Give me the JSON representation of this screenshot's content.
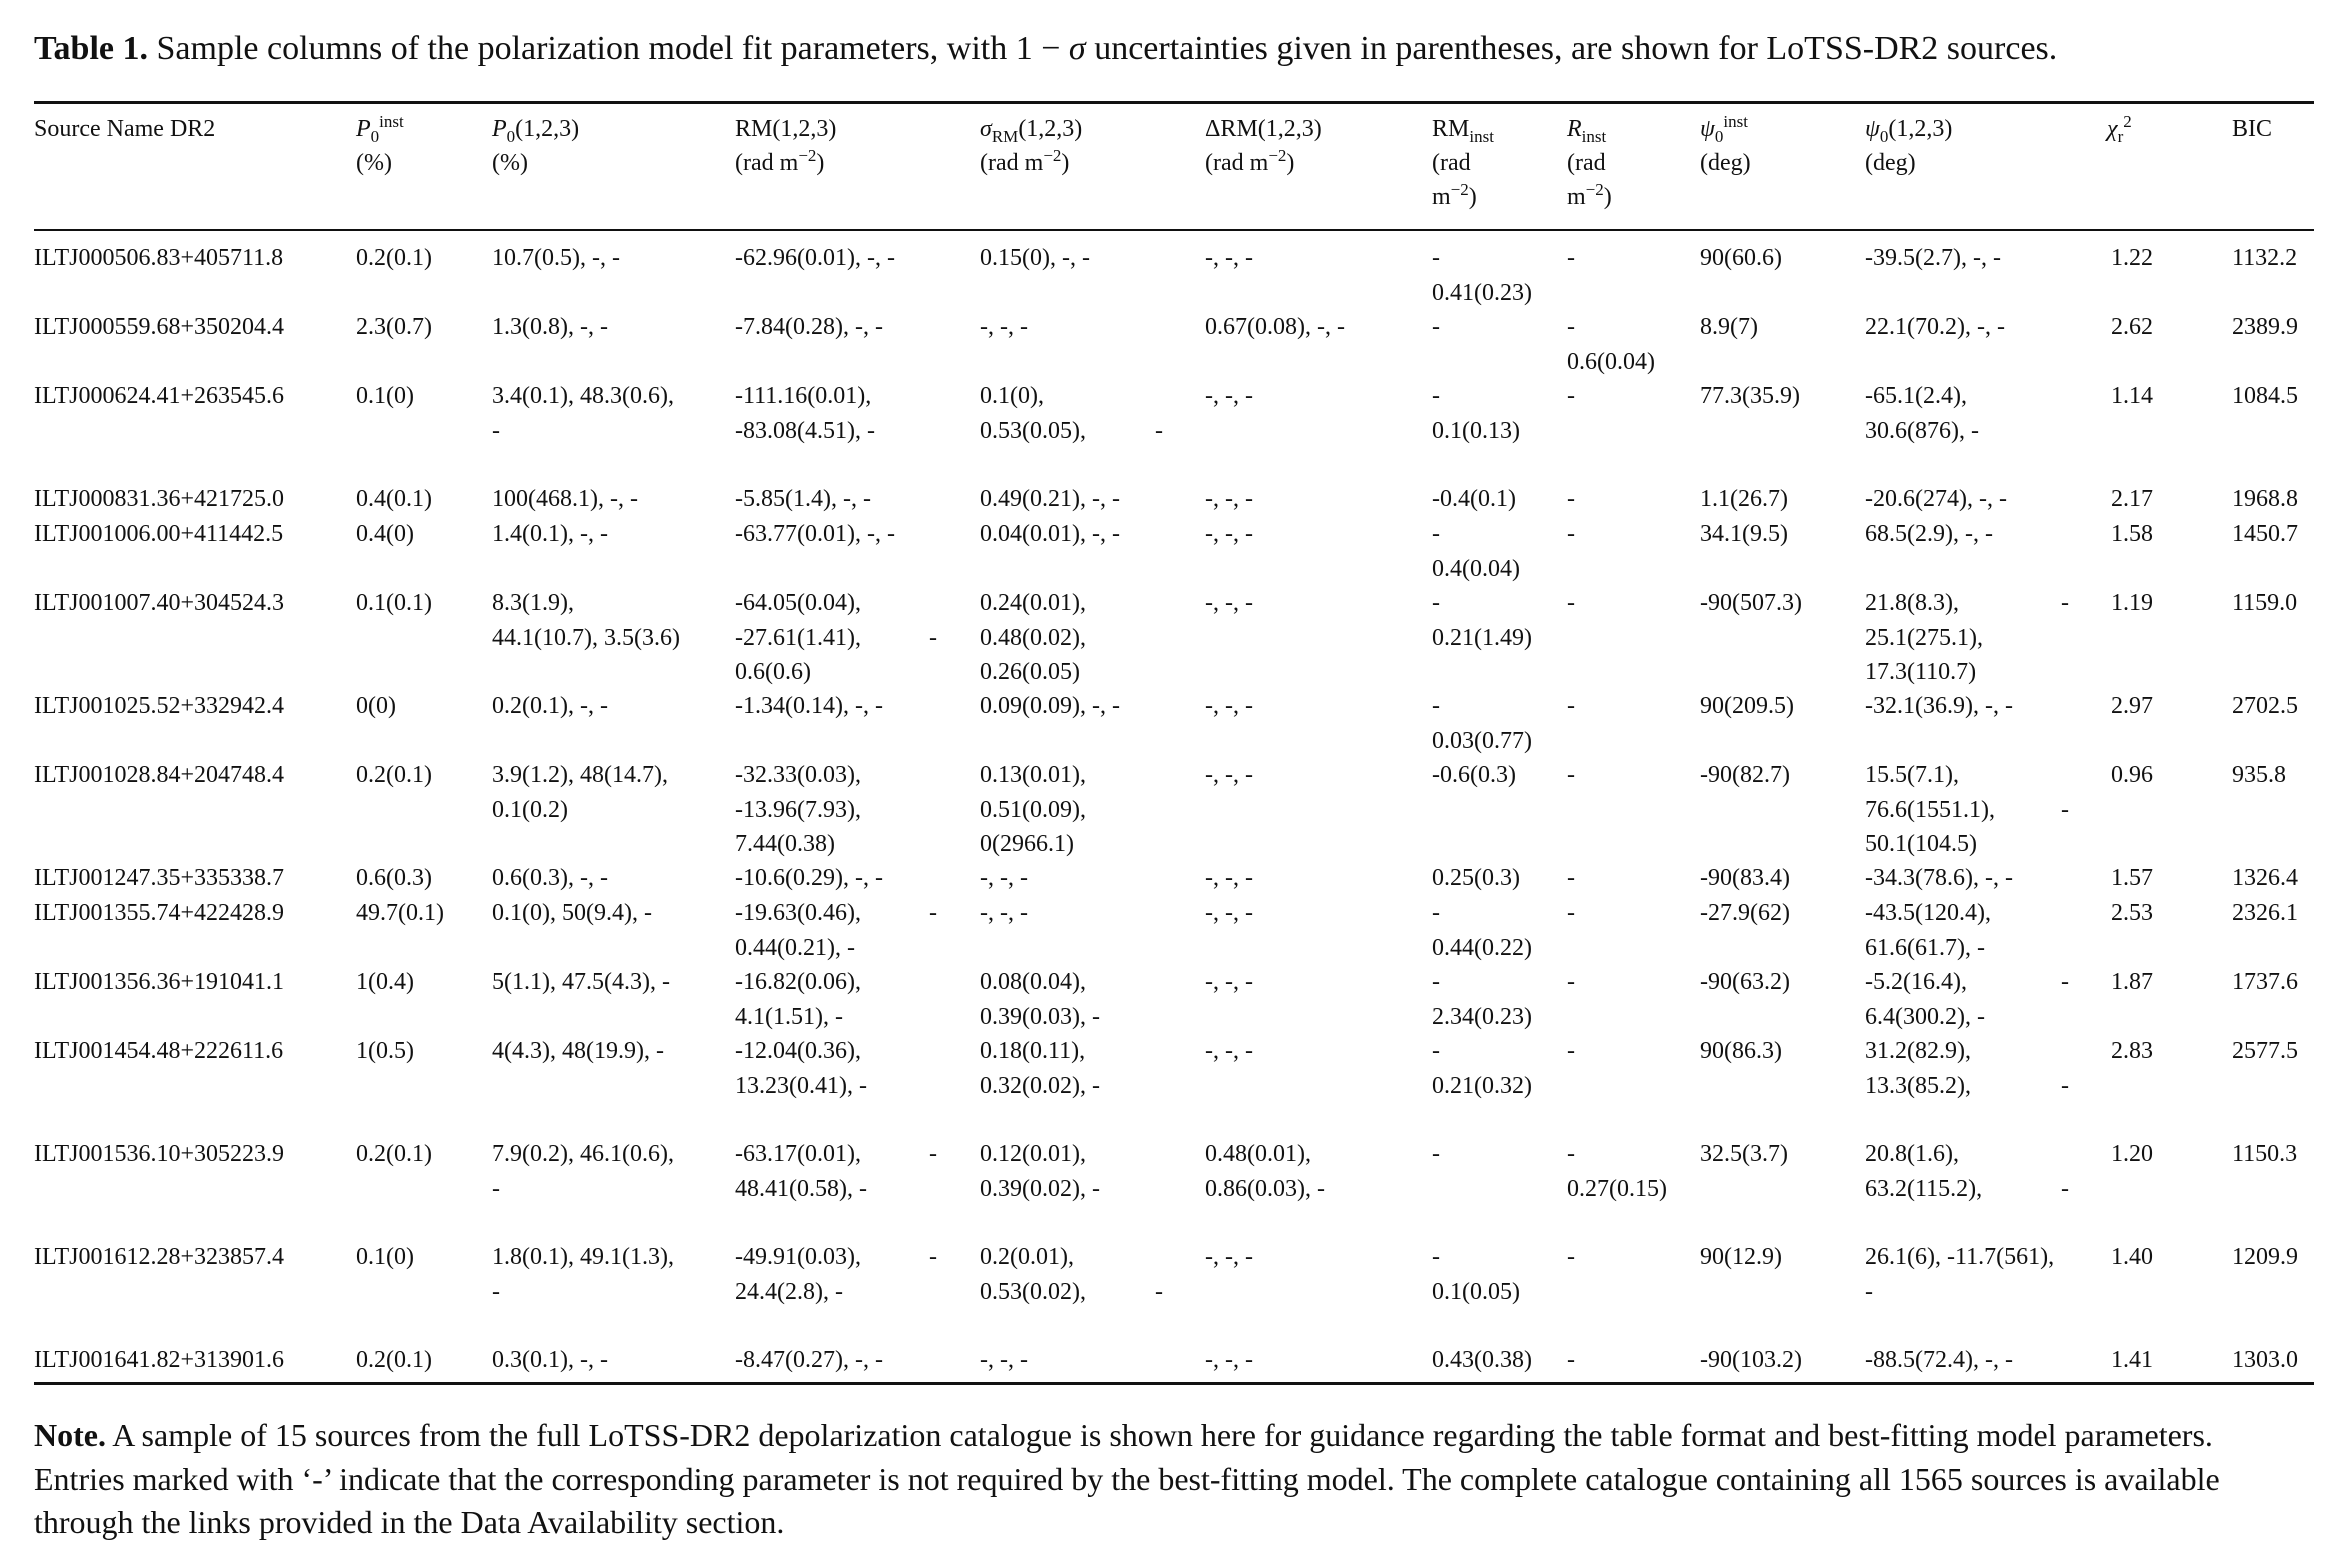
{
  "caption": {
    "label": "Table 1.",
    "text_before": " Sample columns of the polarization model fit parameters, with 1 − ",
    "sigma": "σ",
    "text_after": " uncertainties given in parentheses, are shown for LoTSS-DR2 sources."
  },
  "headers": {
    "source": {
      "line1": "Source Name DR2"
    },
    "p0inst": {
      "main": "P",
      "sub": "0",
      "sup": "inst",
      "line2": "(%)"
    },
    "p0": {
      "main": "P",
      "sub": "0",
      "rest": "(1,2,3)",
      "line2": "(%)"
    },
    "rm": {
      "line1": "RM(1,2,3)",
      "line2_pre": "(rad m",
      "line2_sup": "−2",
      "line2_post": ")"
    },
    "sigma_rm": {
      "main": "σ",
      "sub": "RM",
      "rest": "(1,2,3)",
      "line2_pre": "(rad m",
      "line2_sup": "−2",
      "line2_post": ")"
    },
    "delta_rm": {
      "line1": "ΔRM(1,2,3)",
      "line2_pre": "(rad m",
      "line2_sup": "−2",
      "line2_post": ")"
    },
    "rm_inst": {
      "main": "RM",
      "sub": "inst",
      "line2": "(rad",
      "line3_pre": "m",
      "line3_sup": "−2",
      "line3_post": ")"
    },
    "r_inst": {
      "main": "R",
      "sub": "inst",
      "line2": "(rad",
      "line3_pre": "m",
      "line3_sup": "−2",
      "line3_post": ")"
    },
    "psi0inst": {
      "main": "ψ",
      "sub": "0",
      "sup": "inst",
      "line2": "(deg)"
    },
    "psi0": {
      "main": "ψ",
      "sub": "0",
      "rest": "(1,2,3)",
      "line2": "(deg)"
    },
    "chi2": {
      "main": "χ",
      "sub": "r",
      "sup": "2"
    },
    "bic": {
      "line1": "BIC"
    }
  },
  "rows": [
    {
      "source": [
        "ILTJ000506.83+405711.8"
      ],
      "p0inst": [
        "0.2(0.1)"
      ],
      "p0": [
        "10.7(0.5), -, -"
      ],
      "rm": [
        "-62.96(0.01), -, -"
      ],
      "sigma_rm": [
        "0.15(0), -, -"
      ],
      "delta_rm": [
        "-, -, -"
      ],
      "rm_inst": [
        "-",
        "0.41(0.23)"
      ],
      "r_inst": [
        "-"
      ],
      "psi0inst": [
        "90(60.6)"
      ],
      "psi0": [
        "-39.5(2.7), -, -"
      ],
      "chi2": [
        "1.22"
      ],
      "bic": [
        "1132.2"
      ]
    },
    {
      "source": [
        "ILTJ000559.68+350204.4"
      ],
      "p0inst": [
        "2.3(0.7)"
      ],
      "p0": [
        "1.3(0.8), -, -"
      ],
      "rm": [
        "-7.84(0.28), -, -"
      ],
      "sigma_rm": [
        "-, -, -"
      ],
      "delta_rm": [
        "0.67(0.08), -, -"
      ],
      "rm_inst": [
        "-"
      ],
      "r_inst": [
        "-",
        "0.6(0.04)"
      ],
      "psi0inst": [
        "8.9(7)"
      ],
      "psi0": [
        "22.1(70.2), -, -"
      ],
      "chi2": [
        "2.62"
      ],
      "bic": [
        "2389.9"
      ]
    },
    {
      "source": [
        "ILTJ000624.41+263545.6"
      ],
      "p0inst": [
        "0.1(0)"
      ],
      "p0": [
        "3.4(0.1),  48.3(0.6),",
        "-"
      ],
      "rm": [
        "-111.16(0.01),",
        "-83.08(4.51), -"
      ],
      "sigma_rm": [
        "0.1(0),",
        "0.53(0.05),"
      ],
      "sigma_rm_dash": [
        "",
        "-"
      ],
      "delta_rm": [
        "-, -, -"
      ],
      "rm_inst": [
        "-",
        "0.1(0.13)"
      ],
      "r_inst": [
        "-"
      ],
      "psi0inst": [
        "77.3(35.9)"
      ],
      "psi0": [
        "-65.1(2.4),",
        "30.6(876), -"
      ],
      "chi2": [
        "1.14"
      ],
      "bic": [
        "1084.5"
      ]
    },
    {
      "source": [
        "ILTJ000831.36+421725.0"
      ],
      "p0inst": [
        "0.4(0.1)"
      ],
      "p0": [
        "100(468.1), -, -"
      ],
      "rm": [
        "-5.85(1.4), -, -"
      ],
      "sigma_rm": [
        "0.49(0.21), -, -"
      ],
      "delta_rm": [
        "-, -, -"
      ],
      "rm_inst": [
        "-0.4(0.1)"
      ],
      "r_inst": [
        "-"
      ],
      "psi0inst": [
        "1.1(26.7)"
      ],
      "psi0": [
        "-20.6(274), -, -"
      ],
      "chi2": [
        "2.17"
      ],
      "bic": [
        "1968.8"
      ]
    },
    {
      "source": [
        "ILTJ001006.00+411442.5"
      ],
      "p0inst": [
        "0.4(0)"
      ],
      "p0": [
        "1.4(0.1), -, -"
      ],
      "rm": [
        "-63.77(0.01), -, -"
      ],
      "sigma_rm": [
        "0.04(0.01), -, -"
      ],
      "delta_rm": [
        "-, -, -"
      ],
      "rm_inst": [
        "-",
        "0.4(0.04)"
      ],
      "r_inst": [
        "-"
      ],
      "psi0inst": [
        "34.1(9.5)"
      ],
      "psi0": [
        "68.5(2.9), -, -"
      ],
      "chi2": [
        "1.58"
      ],
      "bic": [
        "1450.7"
      ]
    },
    {
      "source": [
        "ILTJ001007.40+304524.3"
      ],
      "p0inst": [
        "0.1(0.1)"
      ],
      "p0": [
        "8.3(1.9),",
        "44.1(10.7), 3.5(3.6)"
      ],
      "rm": [
        "-64.05(0.04),",
        "-27.61(1.41),",
        "0.6(0.6)"
      ],
      "rm_dash": [
        "",
        "-"
      ],
      "sigma_rm": [
        "0.24(0.01),",
        "0.48(0.02),",
        "0.26(0.05)"
      ],
      "delta_rm": [
        "-, -, -"
      ],
      "rm_inst": [
        "-",
        "0.21(1.49)"
      ],
      "r_inst": [
        "-"
      ],
      "psi0inst": [
        "-90(507.3)"
      ],
      "psi0": [
        "21.8(8.3),",
        "25.1(275.1),",
        "17.3(110.7)"
      ],
      "psi0_dash": [
        "-"
      ],
      "chi2": [
        "1.19"
      ],
      "bic": [
        "1159.0"
      ]
    },
    {
      "source": [
        "ILTJ001025.52+332942.4"
      ],
      "p0inst": [
        "0(0)"
      ],
      "p0": [
        "0.2(0.1), -, -"
      ],
      "rm": [
        "-1.34(0.14), -, -"
      ],
      "sigma_rm": [
        "0.09(0.09), -, -"
      ],
      "delta_rm": [
        "-, -, -"
      ],
      "rm_inst": [
        "-",
        "0.03(0.77)"
      ],
      "r_inst": [
        "-"
      ],
      "psi0inst": [
        "90(209.5)"
      ],
      "psi0": [
        "-32.1(36.9), -, -"
      ],
      "chi2": [
        "2.97"
      ],
      "bic": [
        "2702.5"
      ]
    },
    {
      "source": [
        "ILTJ001028.84+204748.4"
      ],
      "p0inst": [
        "0.2(0.1)"
      ],
      "p0": [
        "3.9(1.2),  48(14.7),",
        "0.1(0.2)"
      ],
      "rm": [
        "-32.33(0.03),",
        "-13.96(7.93),",
        "7.44(0.38)"
      ],
      "sigma_rm": [
        "0.13(0.01),",
        "0.51(0.09),",
        "0(2966.1)"
      ],
      "delta_rm": [
        "-, -, -"
      ],
      "rm_inst": [
        "-0.6(0.3)"
      ],
      "r_inst": [
        "-"
      ],
      "psi0inst": [
        "-90(82.7)"
      ],
      "psi0": [
        "15.5(7.1),",
        "76.6(1551.1),",
        "50.1(104.5)"
      ],
      "psi0_dash": [
        "",
        "-"
      ],
      "chi2": [
        "0.96"
      ],
      "bic": [
        "935.8"
      ]
    },
    {
      "source": [
        "ILTJ001247.35+335338.7"
      ],
      "p0inst": [
        "0.6(0.3)"
      ],
      "p0": [
        "0.6(0.3), -, -"
      ],
      "rm": [
        "-10.6(0.29), -, -"
      ],
      "sigma_rm": [
        "-, -, -"
      ],
      "delta_rm": [
        "-, -, -"
      ],
      "rm_inst": [
        "0.25(0.3)"
      ],
      "r_inst": [
        "-"
      ],
      "psi0inst": [
        "-90(83.4)"
      ],
      "psi0": [
        "-34.3(78.6), -, -"
      ],
      "chi2": [
        "1.57"
      ],
      "bic": [
        "1326.4"
      ]
    },
    {
      "source": [
        "ILTJ001355.74+422428.9"
      ],
      "p0inst": [
        "49.7(0.1)"
      ],
      "p0": [
        "0.1(0), 50(9.4), -"
      ],
      "rm": [
        "-19.63(0.46),",
        "0.44(0.21), -"
      ],
      "rm_dash": [
        "-"
      ],
      "sigma_rm": [
        "-, -, -"
      ],
      "delta_rm": [
        "-, -, -"
      ],
      "rm_inst": [
        "-",
        "0.44(0.22)"
      ],
      "r_inst": [
        "-"
      ],
      "psi0inst": [
        "-27.9(62)"
      ],
      "psi0": [
        "-43.5(120.4),",
        "61.6(61.7), -"
      ],
      "chi2": [
        "2.53"
      ],
      "bic": [
        "2326.1"
      ]
    },
    {
      "source": [
        "ILTJ001356.36+191041.1"
      ],
      "p0inst": [
        "1(0.4)"
      ],
      "p0": [
        "5(1.1), 47.5(4.3), -"
      ],
      "rm": [
        "-16.82(0.06),",
        "4.1(1.51), -"
      ],
      "sigma_rm": [
        "0.08(0.04),",
        "0.39(0.03), -"
      ],
      "delta_rm": [
        "-, -, -"
      ],
      "rm_inst": [
        "-",
        "2.34(0.23)"
      ],
      "r_inst": [
        "-"
      ],
      "psi0inst": [
        "-90(63.2)"
      ],
      "psi0": [
        "-5.2(16.4),",
        "6.4(300.2), -"
      ],
      "psi0_dash": [
        "-"
      ],
      "chi2": [
        "1.87"
      ],
      "bic": [
        "1737.6"
      ]
    },
    {
      "source": [
        "ILTJ001454.48+222611.6"
      ],
      "p0inst": [
        "1(0.5)"
      ],
      "p0": [
        "4(4.3), 48(19.9), -"
      ],
      "rm": [
        "-12.04(0.36),",
        "13.23(0.41), -"
      ],
      "sigma_rm": [
        "0.18(0.11),",
        "0.32(0.02), -"
      ],
      "delta_rm": [
        "-, -, -"
      ],
      "rm_inst": [
        "-",
        "0.21(0.32)"
      ],
      "r_inst": [
        "-"
      ],
      "psi0inst": [
        "90(86.3)"
      ],
      "psi0": [
        "31.2(82.9),",
        "13.3(85.2),"
      ],
      "psi0_dash": [
        "",
        "-"
      ],
      "chi2": [
        "2.83"
      ],
      "bic": [
        "2577.5"
      ]
    },
    {
      "source": [
        "ILTJ001536.10+305223.9"
      ],
      "p0inst": [
        "0.2(0.1)"
      ],
      "p0": [
        "7.9(0.2),  46.1(0.6),",
        "-"
      ],
      "rm": [
        "-63.17(0.01),",
        "48.41(0.58), -"
      ],
      "rm_dash": [
        "-"
      ],
      "sigma_rm": [
        "0.12(0.01),",
        "0.39(0.02), -"
      ],
      "delta_rm": [
        "0.48(0.01),",
        "0.86(0.03), -"
      ],
      "rm_inst": [
        "-"
      ],
      "r_inst": [
        "-",
        "0.27(0.15)"
      ],
      "psi0inst": [
        "32.5(3.7)"
      ],
      "psi0": [
        "20.8(1.6),",
        "63.2(115.2),"
      ],
      "psi0_dash": [
        "",
        "-"
      ],
      "chi2": [
        "1.20"
      ],
      "bic": [
        "1150.3"
      ]
    },
    {
      "source": [
        "ILTJ001612.28+323857.4"
      ],
      "p0inst": [
        "0.1(0)"
      ],
      "p0": [
        "1.8(0.1),  49.1(1.3),",
        "-"
      ],
      "rm": [
        "-49.91(0.03),",
        "24.4(2.8), -"
      ],
      "rm_dash": [
        "-"
      ],
      "sigma_rm": [
        "0.2(0.01),",
        "0.53(0.02),"
      ],
      "sigma_rm_dash": [
        "",
        "-"
      ],
      "delta_rm": [
        "-, -, -"
      ],
      "rm_inst": [
        "-",
        "0.1(0.05)"
      ],
      "r_inst": [
        "-"
      ],
      "psi0inst": [
        "90(12.9)"
      ],
      "psi0": [
        "26.1(6), -11.7(561),",
        "-"
      ],
      "chi2": [
        "1.40"
      ],
      "bic": [
        "1209.9"
      ]
    },
    {
      "source": [
        "ILTJ001641.82+313901.6"
      ],
      "p0inst": [
        "0.2(0.1)"
      ],
      "p0": [
        "0.3(0.1), -, -"
      ],
      "rm": [
        "-8.47(0.27), -, -"
      ],
      "sigma_rm": [
        "-, -, -"
      ],
      "delta_rm": [
        "-, -, -"
      ],
      "rm_inst": [
        "0.43(0.38)"
      ],
      "r_inst": [
        "-"
      ],
      "psi0inst": [
        "-90(103.2)"
      ],
      "psi0": [
        "-88.5(72.4), -, -"
      ],
      "chi2": [
        "1.41"
      ],
      "bic": [
        "1303.0"
      ]
    }
  ],
  "note": {
    "label": "Note.",
    "text": " A sample of 15 sources from the full LoTSS-DR2 depolarization catalogue is shown here for guidance regarding the table format and best-fitting model parameters. Entries marked with ‘-’ indicate that the corresponding parameter is not required by the best-fitting model. The complete catalogue containing all 1565 sources is available through the links provided in the Data Availability section."
  }
}
